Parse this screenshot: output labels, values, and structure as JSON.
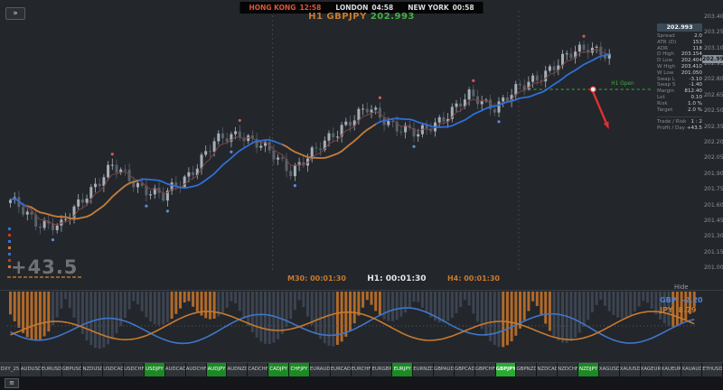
{
  "header": {
    "panel_toggle_icon": "»",
    "sessions": [
      {
        "name": "HONG KONG",
        "time": "12:58",
        "color": "#e0563a"
      },
      {
        "name": "LONDON",
        "time": "04:58",
        "color": "#d9dcdf"
      },
      {
        "name": "NEW YORK",
        "time": "00:58",
        "color": "#d9dcdf"
      }
    ],
    "title": {
      "symbol": "H1 GBPJPY",
      "price": "202.993",
      "symbol_color": "#c87a2e",
      "price_color": "#43b043"
    }
  },
  "chart": {
    "axis_ticks": [
      "203.400",
      "203.250",
      "203.100",
      "202.950",
      "202.800",
      "202.650",
      "202.500",
      "202.350",
      "202.200",
      "202.050",
      "201.900",
      "201.750",
      "201.600",
      "201.450",
      "201.300",
      "201.150",
      "201.000"
    ],
    "current_price": "202.993",
    "price_max": 203.45,
    "price_min": 200.95,
    "candle_count": 142,
    "anchors": [
      [
        0,
        201.62
      ],
      [
        6,
        201.45
      ],
      [
        12,
        201.38
      ],
      [
        18,
        201.72
      ],
      [
        24,
        201.95
      ],
      [
        30,
        201.8
      ],
      [
        36,
        201.66
      ],
      [
        42,
        201.9
      ],
      [
        48,
        202.18
      ],
      [
        54,
        202.3
      ],
      [
        60,
        202.12
      ],
      [
        66,
        201.94
      ],
      [
        72,
        202.1
      ],
      [
        78,
        202.36
      ],
      [
        84,
        202.5
      ],
      [
        90,
        202.38
      ],
      [
        96,
        202.25
      ],
      [
        102,
        202.45
      ],
      [
        108,
        202.62
      ],
      [
        114,
        202.55
      ],
      [
        120,
        202.7
      ],
      [
        126,
        202.88
      ],
      [
        132,
        203.02
      ],
      [
        136,
        203.12
      ],
      [
        139,
        203.08
      ],
      [
        141,
        202.99
      ]
    ],
    "orange_segments": [
      [
        4,
        30
      ],
      [
        64,
        86
      ]
    ],
    "separators": [
      62,
      120
    ],
    "h1_open": {
      "label": "H1 Open",
      "price": 202.7,
      "from_index": 121
    },
    "signal_arrow": {
      "i1": 137.5,
      "p1": 202.7,
      "i2": 140.8,
      "p2": 202.36
    },
    "big_number": "+43.5",
    "timers": [
      {
        "label": "M30:",
        "time": "00:01:30",
        "color": "#c87a2e"
      },
      {
        "label": "H1:",
        "time": "00:01:30",
        "color": "#e2e5e8"
      },
      {
        "label": "H4:",
        "time": "00:01:30",
        "color": "#c87a2e"
      }
    ],
    "left_markers": [
      "#3b6fd4",
      "#c0392b",
      "#3b6fd4",
      "#c87a2e",
      "#3b6fd4",
      "#c0392b",
      "#c87a2e"
    ],
    "colors": {
      "candle_up": "#a7afb8",
      "candle_down": "#59616a",
      "ma_slow": "#2f6fd8",
      "ma_trend": "#c87a2e",
      "ma_fast": "#7a4545",
      "fractal_up": "#cf5b52",
      "fractal_down": "#5b8dd9",
      "arrow": "#e02f2f",
      "h1_open_line": "#3fae3f"
    }
  },
  "info_panel": {
    "header_value": "202.993",
    "rows": [
      {
        "label": "Spread",
        "value": "2.0"
      },
      {
        "label": "ATR (D)",
        "value": "153"
      },
      {
        "label": "ADR",
        "value": "118"
      },
      {
        "label": "D High",
        "value": "203.154"
      },
      {
        "label": "D Low",
        "value": "202.404"
      },
      {
        "label": "W High",
        "value": "203.410"
      },
      {
        "label": "W Low",
        "value": "201.050"
      },
      {
        "label": "Swap L",
        "value": "-3.10"
      },
      {
        "label": "Swap S",
        "value": "-1.40"
      },
      {
        "label": "Margin",
        "value": "812.40"
      },
      {
        "label": "Lot",
        "value": "0.10"
      },
      {
        "label": "Risk",
        "value": "1.0 %"
      },
      {
        "label": "Target",
        "value": "2.0 %"
      }
    ],
    "footer_rows": [
      {
        "label": "Trade / Risk",
        "value": "1 : 2"
      },
      {
        "label": "Profit / Day",
        "value": "+43.5"
      }
    ]
  },
  "subwindow": {
    "hide_label": "Hide",
    "bar_count": 162,
    "strength": [
      {
        "currency": "GBP",
        "value": "-2.20",
        "color": "#4f83d9"
      },
      {
        "currency": "JPY",
        "value": "8.79",
        "color": "#c87a2e"
      }
    ],
    "colors": {
      "bar": "#3c4450",
      "bar_hot": "#b06a2a",
      "line_a": "#3f76c9",
      "line_b": "#c87a2e"
    }
  },
  "tabs": [
    {
      "label": "DXY_25"
    },
    {
      "label": "AUDUSD"
    },
    {
      "label": "EURUSD"
    },
    {
      "label": "GBPUSD"
    },
    {
      "label": "NZDUSD"
    },
    {
      "label": "USDCAD"
    },
    {
      "label": "USDCHF"
    },
    {
      "label": "USDJPY",
      "green": true
    },
    {
      "label": "AUDCAD"
    },
    {
      "label": "AUDCHF"
    },
    {
      "label": "AUDJPY",
      "green": true
    },
    {
      "label": "AUDNZD"
    },
    {
      "label": "CADCHF"
    },
    {
      "label": "CADJPY",
      "green": true
    },
    {
      "label": "CHFJPY",
      "green": true
    },
    {
      "label": "EURAUD"
    },
    {
      "label": "EURCAD"
    },
    {
      "label": "EURCHF"
    },
    {
      "label": "EURGBP"
    },
    {
      "label": "EURJPY",
      "green": true
    },
    {
      "label": "EURNZD"
    },
    {
      "label": "GBPAUD"
    },
    {
      "label": "GBPCAD"
    },
    {
      "label": "GBPCHF"
    },
    {
      "label": "GBPJPY",
      "green": true,
      "active": true
    },
    {
      "label": "GBPNZD"
    },
    {
      "label": "NZDCAD"
    },
    {
      "label": "NZDCHF"
    },
    {
      "label": "NZDJPY",
      "green": true
    },
    {
      "label": "XAGUSD"
    },
    {
      "label": "XAUUSD"
    },
    {
      "label": "XAGEUR"
    },
    {
      "label": "XAUEUR"
    },
    {
      "label": "XAUAUD"
    },
    {
      "label": "ETHUSD"
    }
  ],
  "footer": {
    "menu_icon": "≡"
  }
}
